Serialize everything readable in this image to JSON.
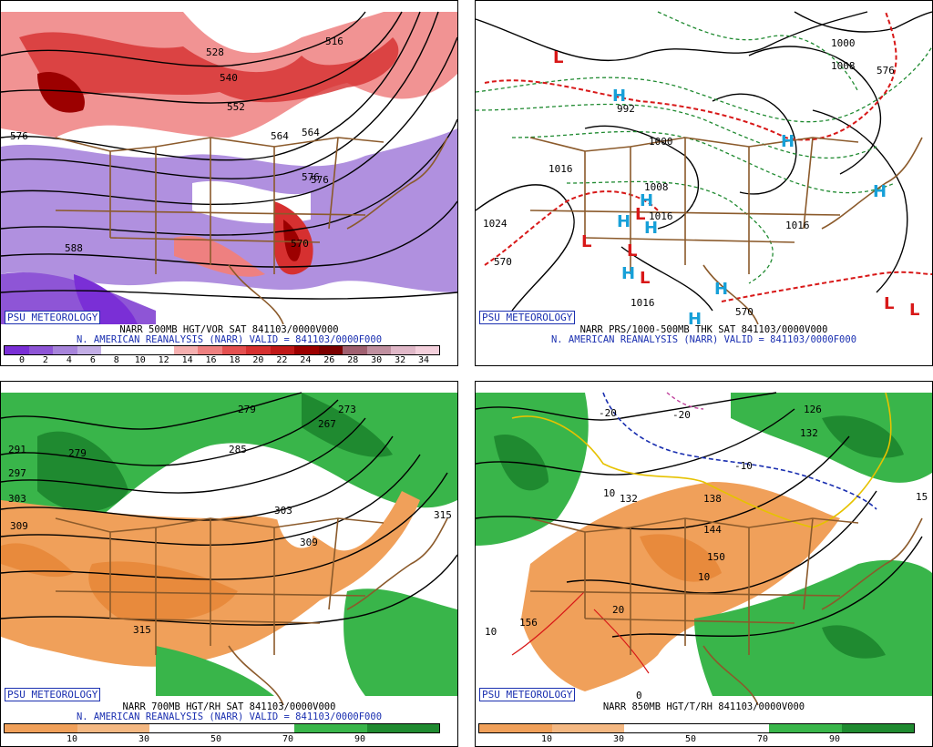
{
  "badge": "PSU METEOROLOGY",
  "panels": {
    "p1": {
      "title": "NARR 500MB HGT/VOR SAT 841103/0000V000",
      "subtitle": "N. AMERICAN REANALYSIS (NARR) VALID = 841103/0000F000",
      "ticks": [
        "0",
        "2",
        "4",
        "6",
        "8",
        "10",
        "12",
        "14",
        "16",
        "18",
        "20",
        "22",
        "24",
        "26",
        "28",
        "30",
        "32",
        "34"
      ],
      "colorbar": [
        "#7a2fd6",
        "#8e55d6",
        "#a784db",
        "#c3aee6",
        "#ffffff",
        "#ffffff",
        "#ffffff",
        "#f6b0b0",
        "#ee8080",
        "#e45050",
        "#d63030",
        "#c01818",
        "#9c0000",
        "#7c0000",
        "#a06070",
        "#c090a0",
        "#e0b8c8",
        "#f4d0dc"
      ],
      "labels": [
        "528",
        "576",
        "540",
        "552",
        "576",
        "516",
        "564",
        "588",
        "576",
        "564",
        "570"
      ]
    },
    "p2": {
      "title": "NARR PRS/1000-500MB THK SAT 841103/0000V000",
      "subtitle": "N. AMERICAN REANALYSIS (NARR) VALID = 841103/0000F000",
      "labels": [
        "1024",
        "1016",
        "1000",
        "1008",
        "992",
        "1016",
        "1016",
        "1000",
        "1008",
        "570",
        "570",
        "1016",
        "576"
      ]
    },
    "p3": {
      "title": "NARR 700MB HGT/RH SAT 841103/0000V000",
      "subtitle": "N. AMERICAN REANALYSIS (NARR) VALID = 841103/0000F000",
      "ticks": [
        "10",
        "30",
        "50",
        "70",
        "90"
      ],
      "labels": [
        "279",
        "279",
        "285",
        "291",
        "297",
        "303",
        "309",
        "303",
        "309",
        "315",
        "315",
        "273",
        "267"
      ]
    },
    "p4": {
      "title": "NARR 850MB HGT/T/RH 841103/0000V000",
      "ticks": [
        "10",
        "30",
        "50",
        "70",
        "90"
      ],
      "labels": [
        "-20",
        "-20",
        "-10",
        "10",
        "132",
        "138",
        "144",
        "150",
        "156",
        "10",
        "20",
        "10",
        "126",
        "132",
        "0",
        "15"
      ]
    }
  },
  "rh_colors": [
    "#f0a05a",
    "#f4b882",
    "#ffffff",
    "#ffffff",
    "#39b54a",
    "#1f8a30"
  ],
  "colors": {
    "brown": "#8b5a2b",
    "red": "#d81818",
    "green": "#1f8a30",
    "blue": "#1a2fb0",
    "cyan": "#17a0d8"
  }
}
